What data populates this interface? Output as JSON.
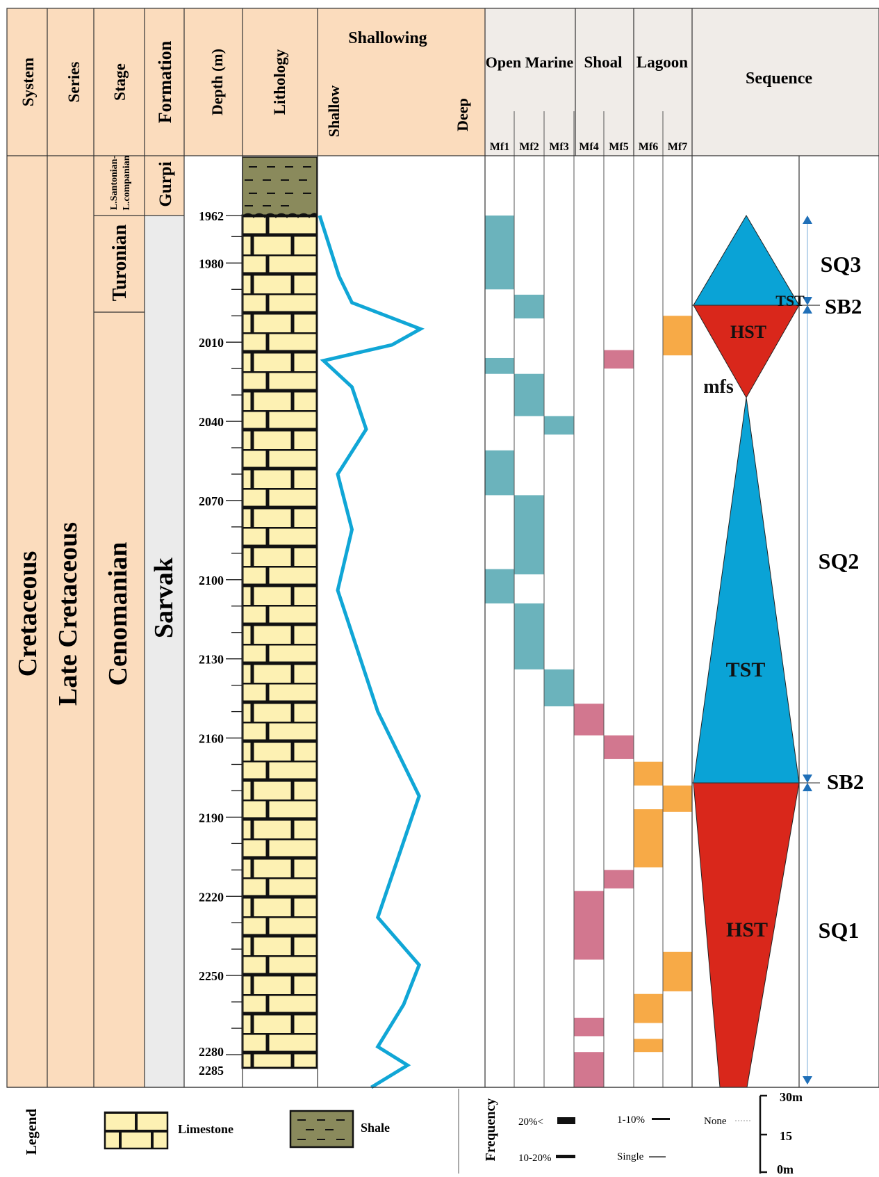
{
  "header": {
    "system": "System",
    "series": "Series",
    "stage": "Stage",
    "formation": "Formation",
    "depth": "Depth (m)",
    "lithology": "Lithology",
    "shallowing": "Shallowing",
    "shallow": "Shallow",
    "deep": "Deep",
    "open_marine": "Open Marine",
    "shoal": "Shoal",
    "lagoon": "Lagoon",
    "sequence": "Sequence",
    "mf_labels": [
      "Mf1",
      "Mf2",
      "Mf3",
      "Mf4",
      "Mf5",
      "Mf6",
      "Mf7"
    ]
  },
  "column": {
    "system": "Cretaceous",
    "series": "Late Cretaceous",
    "stage_upper_1": "L.Santonian-",
    "stage_upper_2": "L.companian",
    "stage_turonian": "Turonian",
    "stage_cenomanian": "Cenomanian",
    "formation_gurpi": "Gurpi",
    "formation_sarvak": "Sarvak"
  },
  "depth_labels": [
    "1962",
    "1980",
    "2010",
    "2040",
    "2070",
    "2100",
    "2130",
    "2160",
    "2190",
    "2220",
    "2250",
    "2280",
    "2285"
  ],
  "chart_data": {
    "type": "line",
    "name": "Shallowing curve",
    "depth_unit": "m",
    "depth_range": [
      1962,
      2285
    ],
    "x_scale": "0 = Shallow, 1 = Deep",
    "points": [
      [
        1962,
        0.0
      ],
      [
        1985,
        0.15
      ],
      [
        1995,
        0.25
      ],
      [
        2005,
        0.78
      ],
      [
        2011,
        0.56
      ],
      [
        2017,
        0.03
      ],
      [
        2027,
        0.25
      ],
      [
        2043,
        0.36
      ],
      [
        2060,
        0.14
      ],
      [
        2081,
        0.25
      ],
      [
        2104,
        0.14
      ],
      [
        2150,
        0.45
      ],
      [
        2182,
        0.77
      ],
      [
        2228,
        0.45
      ],
      [
        2246,
        0.77
      ],
      [
        2261,
        0.65
      ],
      [
        2277,
        0.45
      ],
      [
        2284,
        0.68
      ],
      [
        2296,
        0.4
      ]
    ],
    "facies": {
      "colors": {
        "open_marine": "#6bb3bc",
        "shoal": "#d2778f",
        "lagoon": "#f7aa47"
      },
      "intervals": [
        {
          "mf": "Mf1",
          "from": 1962,
          "to": 1990
        },
        {
          "mf": "Mf1",
          "from": 2016,
          "to": 2022
        },
        {
          "mf": "Mf1",
          "from": 2051,
          "to": 2068
        },
        {
          "mf": "Mf1",
          "from": 2096,
          "to": 2109
        },
        {
          "mf": "Mf2",
          "from": 1992,
          "to": 2001
        },
        {
          "mf": "Mf2",
          "from": 2022,
          "to": 2038
        },
        {
          "mf": "Mf2",
          "from": 2068,
          "to": 2098
        },
        {
          "mf": "Mf2",
          "from": 2109,
          "to": 2134
        },
        {
          "mf": "Mf3",
          "from": 2038,
          "to": 2045
        },
        {
          "mf": "Mf3",
          "from": 2134,
          "to": 2148
        },
        {
          "mf": "Mf4",
          "from": 2147,
          "to": 2159
        },
        {
          "mf": "Mf4",
          "from": 2218,
          "to": 2244
        },
        {
          "mf": "Mf4",
          "from": 2266,
          "to": 2273
        },
        {
          "mf": "Mf4",
          "from": 2279,
          "to": 2293
        },
        {
          "mf": "Mf5",
          "from": 2013,
          "to": 2020
        },
        {
          "mf": "Mf5",
          "from": 2159,
          "to": 2168
        },
        {
          "mf": "Mf5",
          "from": 2210,
          "to": 2217
        },
        {
          "mf": "Mf6",
          "from": 2169,
          "to": 2178
        },
        {
          "mf": "Mf6",
          "from": 2187,
          "to": 2209
        },
        {
          "mf": "Mf6",
          "from": 2257,
          "to": 2268
        },
        {
          "mf": "Mf6",
          "from": 2274,
          "to": 2279
        },
        {
          "mf": "Mf7",
          "from": 2000,
          "to": 2015
        },
        {
          "mf": "Mf7",
          "from": 2178,
          "to": 2188
        },
        {
          "mf": "Mf7",
          "from": 2241,
          "to": 2256
        }
      ]
    },
    "sequence": {
      "tract_labels": {
        "sq3_tst": "TST",
        "sq2_hst": "HST",
        "sq2_tst": "TST",
        "sq1_hst": "HST",
        "mfs": "mfs"
      },
      "colors": {
        "tst": "#0aa3d6",
        "hst": "#d9271b"
      },
      "boundaries": {
        "sq3_top": 1962,
        "sb_upper": 1996,
        "mfs": 2031,
        "sb_lower": 2177,
        "base": 2293
      },
      "sequence_labels": [
        "SQ3",
        "SQ2",
        "SQ1"
      ],
      "boundary_labels": [
        "SB2",
        "SB2"
      ]
    }
  },
  "legend": {
    "title": "Legend",
    "limestone": "Limestone",
    "shale": "Shale",
    "frequency": "Frequency",
    "f_20plus": "20%<",
    "f_10_20": "10-20%",
    "f_1_10": "1-10%",
    "f_single": "Single",
    "f_none": "None",
    "scale_30": "30m",
    "scale_15": "15",
    "scale_0": "0m"
  }
}
